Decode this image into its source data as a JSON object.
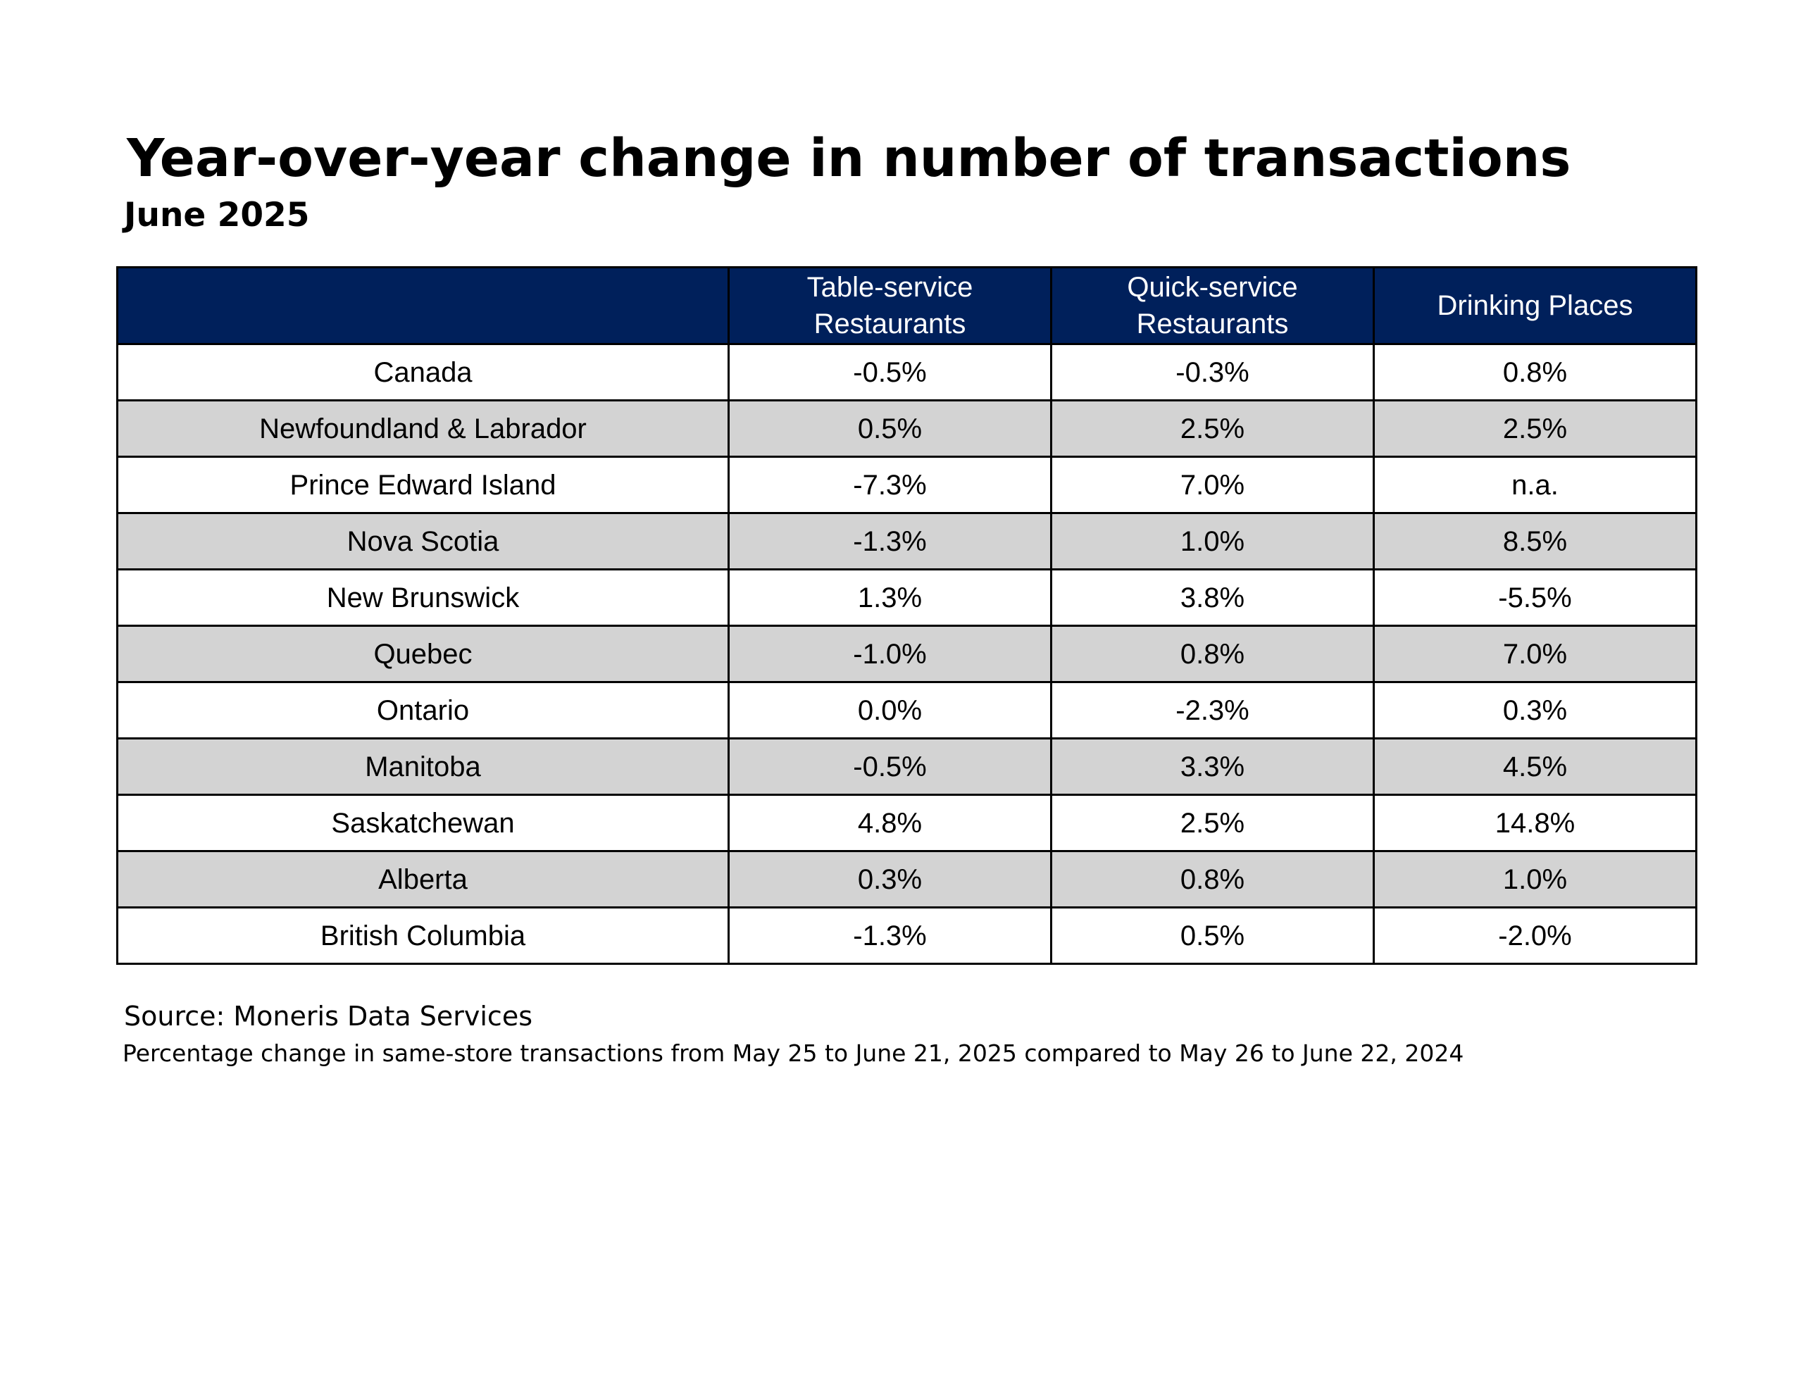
{
  "colors": {
    "header_bg": "#00205b",
    "header_text": "#ffffff",
    "band_bg": "#d3d3d3",
    "row_bg": "#ffffff",
    "border": "#000000"
  },
  "chart_data": {
    "type": "table",
    "title": "Year-over-year change in number of transactions",
    "subtitle": "June 2025",
    "columns": [
      "",
      "Table-service\nRestaurants",
      "Quick-service\nRestaurants",
      "Drinking Places"
    ],
    "rows": [
      [
        "Canada",
        "-0.5%",
        "-0.3%",
        "0.8%"
      ],
      [
        "Newfoundland & Labrador",
        "0.5%",
        "2.5%",
        "2.5%"
      ],
      [
        "Prince Edward Island",
        "-7.3%",
        "7.0%",
        "n.a."
      ],
      [
        "Nova Scotia",
        "-1.3%",
        "1.0%",
        "8.5%"
      ],
      [
        "New Brunswick",
        "1.3%",
        "3.8%",
        "-5.5%"
      ],
      [
        "Quebec",
        "-1.0%",
        "0.8%",
        "7.0%"
      ],
      [
        "Ontario",
        "0.0%",
        "-2.3%",
        "0.3%"
      ],
      [
        "Manitoba",
        "-0.5%",
        "3.3%",
        "4.5%"
      ],
      [
        "Saskatchewan",
        "4.8%",
        "2.5%",
        "14.8%"
      ],
      [
        "Alberta",
        "0.3%",
        "0.8%",
        "1.0%"
      ],
      [
        "British Columbia",
        "-1.3%",
        "0.5%",
        "-2.0%"
      ]
    ],
    "source": "Source: Moneris Data Services",
    "note": "Percentage change in same-store transactions from May 25 to June 21, 2025 compared to May 26 to June 22, 2024"
  }
}
